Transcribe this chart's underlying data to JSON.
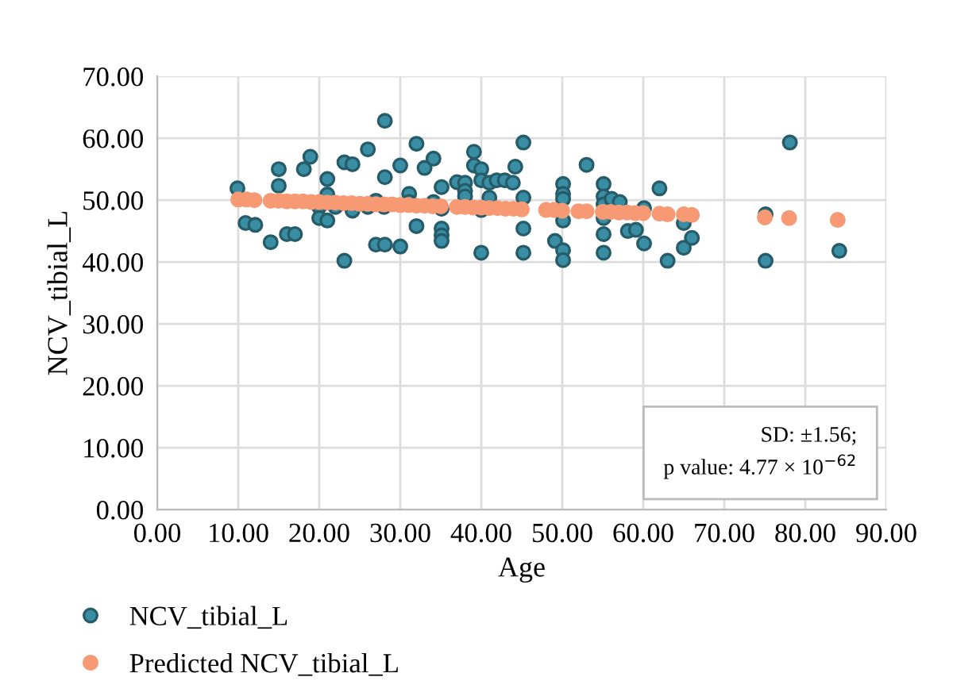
{
  "chart_data": {
    "type": "scatter",
    "xlabel": "Age",
    "ylabel": "NCV_tibial_L",
    "xlim": [
      0,
      90
    ],
    "xticks": [
      {
        "value": 0,
        "label": "0.00"
      },
      {
        "value": 10,
        "label": "10.00"
      },
      {
        "value": 20,
        "label": "20.00"
      },
      {
        "value": 30,
        "label": "30.00"
      },
      {
        "value": 40,
        "label": "40.00"
      },
      {
        "value": 50,
        "label": "50.00"
      },
      {
        "value": 60,
        "label": "60.00"
      },
      {
        "value": 70,
        "label": "70.00"
      },
      {
        "value": 80,
        "label": "80.00"
      },
      {
        "value": 90,
        "label": "90.00"
      }
    ],
    "ylim": [
      0,
      70
    ],
    "yticks": [
      {
        "value": 0,
        "label": "0.00"
      },
      {
        "value": 10,
        "label": "10.00"
      },
      {
        "value": 20,
        "label": "20.00"
      },
      {
        "value": 30,
        "label": "30.00"
      },
      {
        "value": 40,
        "label": "40.00"
      },
      {
        "value": 50,
        "label": "50.00"
      },
      {
        "value": 60,
        "label": "60.00"
      },
      {
        "value": 70,
        "label": "70.00"
      }
    ],
    "grid": true,
    "legend": "bottom",
    "marker": "circle",
    "annotations": [
      "SD: ±1.56;\np value: 4.77 × 10$^{−62}$"
    ],
    "series": [
      {
        "name": "NCV_tibial_L",
        "color": "#3a8ea3",
        "x": [
          9.9,
          10.9,
          12.1,
          14.0,
          15.0,
          15.0,
          16.0,
          17.0,
          18.1,
          18.9,
          20.0,
          20.0,
          21.0,
          21.0,
          21.0,
          22.0,
          23.1,
          24.1,
          24.1,
          23.1,
          26.0,
          27.0,
          28.1,
          28.1,
          28.1,
          26.0,
          27.0,
          28.0,
          30.0,
          30.0,
          31.1,
          31.1,
          32.0,
          32.0,
          33.0,
          34.1,
          34.1,
          35.1,
          35.1,
          35.1,
          35.1,
          35.1,
          37.0,
          38.0,
          38.0,
          38.0,
          39.1,
          39.1,
          40.0,
          40.0,
          40.0,
          40.0,
          41.0,
          41.0,
          41.9,
          42.9,
          43.9,
          44.2,
          45.2,
          45.2,
          45.2,
          45.2,
          50.1,
          50.1,
          50.1,
          50.1,
          49.1,
          50.1,
          50.1,
          53.0,
          55.1,
          55.1,
          55.1,
          55.1,
          55.1,
          55.1,
          56.1,
          57.1,
          58.1,
          59.1,
          60.1,
          60.1,
          62.0,
          63.0,
          65.0,
          65.0,
          66.0,
          75.1,
          75.1,
          78.1,
          84.2
        ],
        "values": [
          51.9,
          46.3,
          46.0,
          43.2,
          55.0,
          52.3,
          44.5,
          44.5,
          55.0,
          57.0,
          48.9,
          47.1,
          46.7,
          53.4,
          50.9,
          48.9,
          56.1,
          55.8,
          48.3,
          40.2,
          58.2,
          42.8,
          42.8,
          62.8,
          53.7,
          48.9,
          49.9,
          48.9,
          55.6,
          42.5,
          51.0,
          49.7,
          59.1,
          45.8,
          55.2,
          56.7,
          49.7,
          52.1,
          48.6,
          45.4,
          44.3,
          43.4,
          52.9,
          52.8,
          51.5,
          50.6,
          57.8,
          55.6,
          55.0,
          53.2,
          48.4,
          41.5,
          52.8,
          50.4,
          53.2,
          53.2,
          52.8,
          55.4,
          59.3,
          50.4,
          45.4,
          41.5,
          52.6,
          51.0,
          50.2,
          46.7,
          43.4,
          41.9,
          40.3,
          55.7,
          52.6,
          50.6,
          49.3,
          47.1,
          44.5,
          41.5,
          50.2,
          49.7,
          45.0,
          45.2,
          48.7,
          43.0,
          51.9,
          40.2,
          46.3,
          42.3,
          43.9,
          47.7,
          40.2,
          59.3,
          41.8
        ]
      },
      {
        "name": "Predicted NCV_tibial_L",
        "color": "#f79a74",
        "x": [
          10,
          11,
          12,
          14,
          15,
          16,
          17,
          18,
          19,
          20,
          21,
          22,
          23,
          24,
          25,
          26,
          27,
          28,
          29,
          30,
          31,
          32,
          33,
          34,
          35,
          37,
          38,
          39,
          40,
          41,
          42,
          43,
          44,
          45,
          48,
          49,
          50,
          52,
          53,
          55,
          56,
          57,
          58,
          59,
          60,
          62,
          63,
          65,
          66,
          75,
          78,
          84
        ],
        "values": [
          50.1,
          50.1,
          50.0,
          49.9,
          49.9,
          49.8,
          49.8,
          49.8,
          49.7,
          49.7,
          49.6,
          49.6,
          49.5,
          49.5,
          49.4,
          49.4,
          49.3,
          49.3,
          49.3,
          49.2,
          49.2,
          49.1,
          49.1,
          49.0,
          49.0,
          48.9,
          48.9,
          48.8,
          48.8,
          48.7,
          48.7,
          48.6,
          48.6,
          48.5,
          48.4,
          48.4,
          48.3,
          48.2,
          48.2,
          48.1,
          48.1,
          48.0,
          48.0,
          47.9,
          47.9,
          47.8,
          47.7,
          47.7,
          47.6,
          47.2,
          47.1,
          46.8
        ]
      }
    ]
  }
}
